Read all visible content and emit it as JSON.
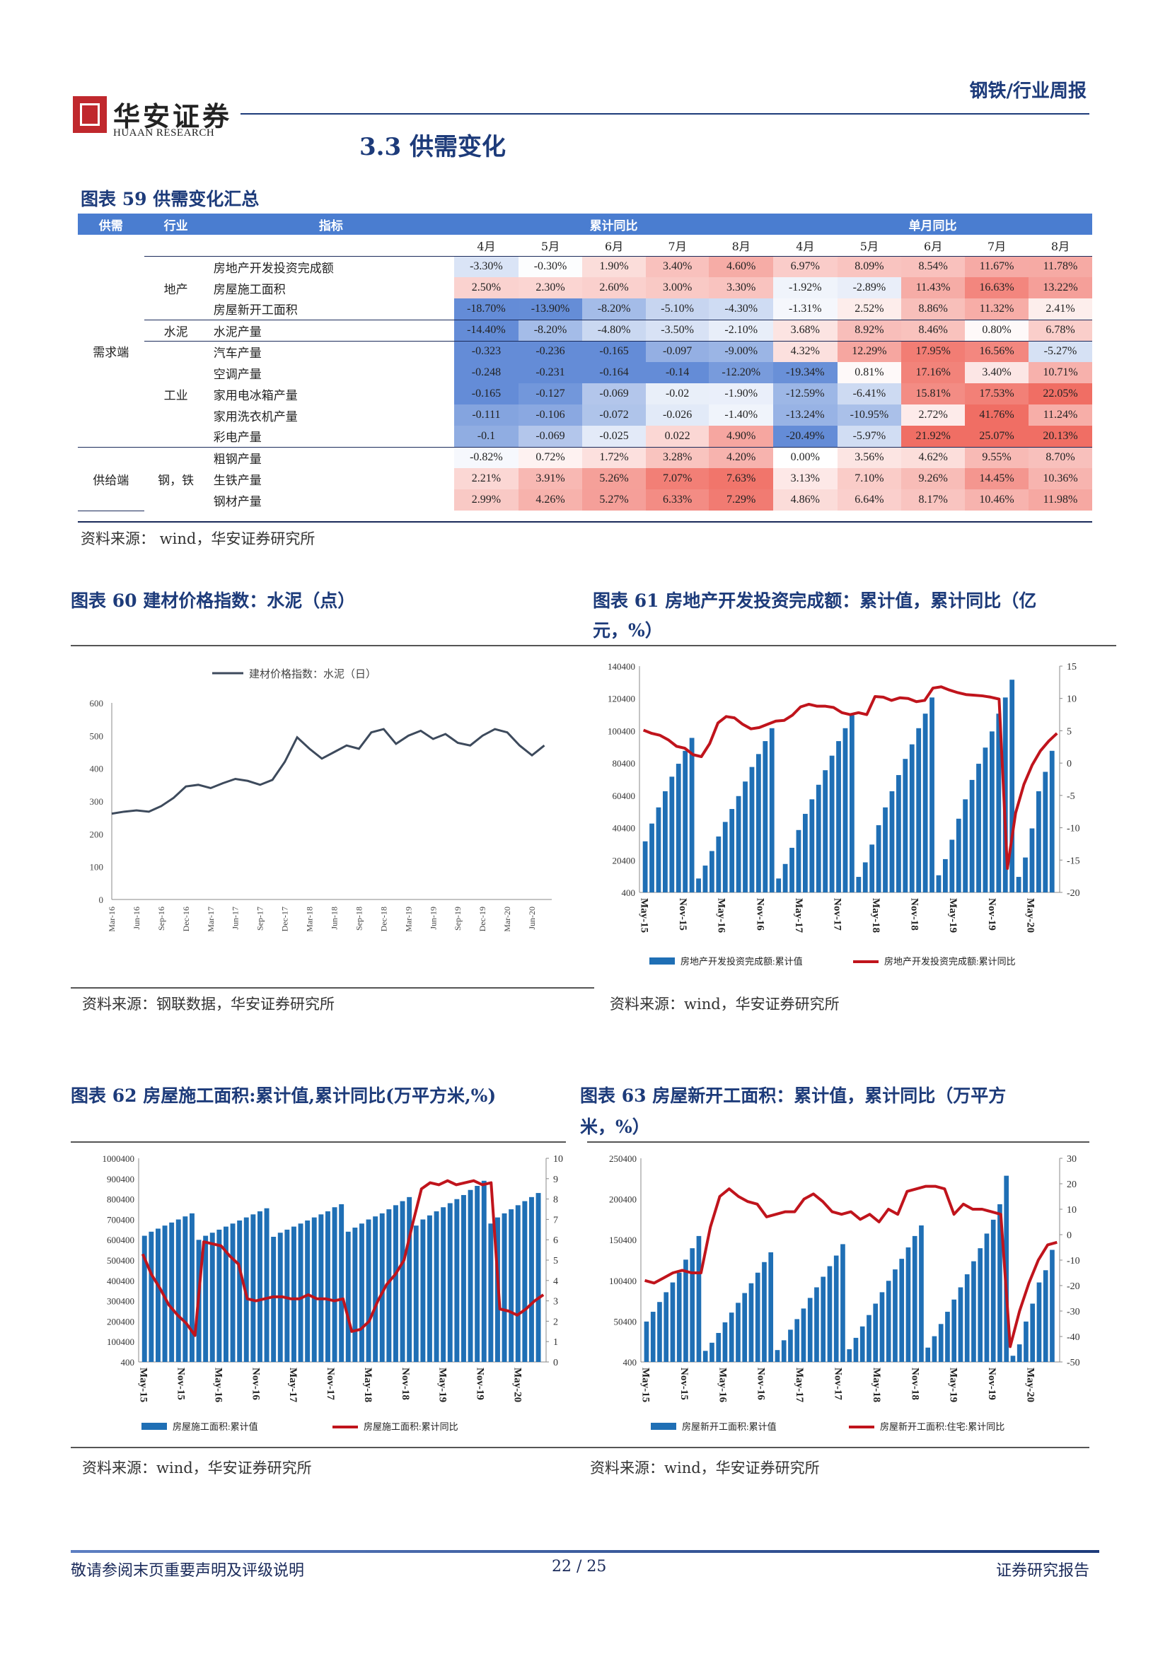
{
  "header": {
    "logo_cn": "华安证券",
    "logo_en": "HUAAN RESEARCH",
    "report_type": "钢铁/行业周报"
  },
  "section_title": "3.3 供需变化",
  "table59": {
    "title": "图表 59 供需变化汇总",
    "head": {
      "supply_demand": "供需",
      "industry": "行业",
      "indicator": "指标",
      "cumulative": "累计同比",
      "single": "单月同比"
    },
    "months": [
      "4月",
      "5月",
      "6月",
      "7月",
      "8月",
      "4月",
      "5月",
      "6月",
      "7月",
      "8月"
    ],
    "groups": [
      {
        "side": "需求端",
        "subgroups": [
          {
            "industry": "地产",
            "rows": [
              {
                "name": "房地产开发投资完成额",
                "values": [
                  "-3.30%",
                  "-0.30%",
                  "1.90%",
                  "3.40%",
                  "4.60%",
                  "6.97%",
                  "8.09%",
                  "8.54%",
                  "11.67%",
                  "11.78%"
                ]
              },
              {
                "name": "房屋施工面积",
                "values": [
                  "2.50%",
                  "2.30%",
                  "2.60%",
                  "3.00%",
                  "3.30%",
                  "-1.92%",
                  "-2.89%",
                  "11.43%",
                  "16.63%",
                  "13.22%"
                ]
              },
              {
                "name": "房屋新开工面积",
                "values": [
                  "-18.70%",
                  "-13.90%",
                  "-8.20%",
                  "-5.10%",
                  "-4.30%",
                  "-1.31%",
                  "2.52%",
                  "8.86%",
                  "11.32%",
                  "2.41%"
                ]
              }
            ]
          },
          {
            "industry": "水泥",
            "rows": [
              {
                "name": "水泥产量",
                "values": [
                  "-14.40%",
                  "-8.20%",
                  "-4.80%",
                  "-3.50%",
                  "-2.10%",
                  "3.68%",
                  "8.92%",
                  "8.46%",
                  "0.80%",
                  "6.78%"
                ]
              }
            ]
          },
          {
            "industry": "工业",
            "rows": [
              {
                "name": "汽车产量",
                "values": [
                  "-0.323",
                  "-0.236",
                  "-0.165",
                  "-0.097",
                  "-9.00%",
                  "4.32%",
                  "12.29%",
                  "17.95%",
                  "16.56%",
                  "-5.27%"
                ]
              },
              {
                "name": "空调产量",
                "values": [
                  "-0.248",
                  "-0.231",
                  "-0.164",
                  "-0.14",
                  "-12.20%",
                  "-19.34%",
                  "0.81%",
                  "17.16%",
                  "3.40%",
                  "10.71%"
                ]
              },
              {
                "name": "家用电冰箱产量",
                "values": [
                  "-0.165",
                  "-0.127",
                  "-0.069",
                  "-0.02",
                  "-1.90%",
                  "-12.59%",
                  "-6.41%",
                  "15.81%",
                  "17.53%",
                  "22.05%"
                ]
              },
              {
                "name": "家用洗衣机产量",
                "values": [
                  "-0.111",
                  "-0.106",
                  "-0.072",
                  "-0.026",
                  "-1.40%",
                  "-13.24%",
                  "-10.95%",
                  "2.72%",
                  "41.76%",
                  "11.24%"
                ]
              },
              {
                "name": "彩电产量",
                "values": [
                  "-0.1",
                  "-0.069",
                  "-0.025",
                  "0.022",
                  "4.90%",
                  "-20.49%",
                  "-5.97%",
                  "21.92%",
                  "25.07%",
                  "20.13%"
                ]
              }
            ]
          }
        ]
      },
      {
        "side": "供给端",
        "subgroups": [
          {
            "industry": "钢，铁",
            "rows": [
              {
                "name": "粗钢产量",
                "values": [
                  "-0.82%",
                  "0.72%",
                  "1.72%",
                  "3.28%",
                  "4.20%",
                  "0.00%",
                  "3.56%",
                  "4.62%",
                  "9.55%",
                  "8.70%"
                ]
              },
              {
                "name": "生铁产量",
                "values": [
                  "2.21%",
                  "3.91%",
                  "5.26%",
                  "7.07%",
                  "7.63%",
                  "3.13%",
                  "7.10%",
                  "9.26%",
                  "14.45%",
                  "10.36%"
                ]
              },
              {
                "name": "钢材产量",
                "values": [
                  "2.99%",
                  "4.26%",
                  "5.27%",
                  "6.33%",
                  "7.29%",
                  "4.86%",
                  "6.64%",
                  "8.17%",
                  "10.46%",
                  "11.98%"
                ]
              }
            ]
          }
        ]
      }
    ],
    "source": "资料来源： wind，华安证券研究所"
  },
  "fig60": {
    "title": "图表 60  建材价格指数：水泥（点）",
    "source": "资料来源：钢联数据，华安证券研究所",
    "legend": "建材价格指数：水泥（日）",
    "color": "#3d4a5c"
  },
  "fig61": {
    "title_line1": "图表 61  房地产开发投资完成额：累计值，累计同比（亿",
    "title_line2": "元，%）",
    "source": "资料来源：wind，华安证券研究所",
    "legend_bar": "房地产开发投资完成额:累计值",
    "legend_line": "房地产开发投资完成额:累计同比"
  },
  "fig62": {
    "title": "图表 62  房屋施工面积:累计值,累计同比(万平方米,%)",
    "source": "资料来源：wind，华安证券研究所",
    "legend_bar": "房屋施工面积:累计值",
    "legend_line": "房屋施工面积:累计同比"
  },
  "fig63": {
    "title_line1": "图表 63  房屋新开工面积：累计值，累计同比（万平方",
    "title_line2": "米，%）",
    "source": "资料来源：wind，华安证券研究所",
    "legend_bar": "房屋新开工面积:累计值",
    "legend_line": "房屋新开工面积:住宅:累计同比"
  },
  "footer": {
    "left": "敬请参阅末页重要声明及评级说明",
    "page": "22 / 25",
    "right": "证券研究报告"
  },
  "chart_data": [
    {
      "id": "fig60",
      "type": "line",
      "title": "图表 60  建材价格指数：水泥（点）",
      "x_ticks": [
        "Mar-16",
        "Jun-16",
        "Sep-16",
        "Dec-16",
        "Mar-17",
        "Jun-17",
        "Sep-17",
        "Dec-17",
        "Mar-18",
        "Jun-18",
        "Sep-18",
        "Dec-18",
        "Mar-19",
        "Jun-19",
        "Sep-19",
        "Dec-19",
        "Mar-20",
        "Jun-20"
      ],
      "ylim": [
        0,
        600
      ],
      "y_ticks": [
        0,
        100,
        200,
        300,
        400,
        500,
        600
      ],
      "series": [
        {
          "name": "建材价格指数：水泥（日）",
          "x": [
            0,
            0.5,
            1,
            1.5,
            2,
            2.5,
            3,
            3.5,
            4,
            4.5,
            5,
            5.5,
            6,
            6.5,
            7,
            7.5,
            8,
            8.5,
            9,
            9.5,
            10,
            10.5,
            11,
            11.5,
            12,
            12.5,
            13,
            13.5,
            14,
            14.5,
            15,
            15.5,
            16,
            16.5,
            17,
            17.5
          ],
          "values": [
            262,
            268,
            272,
            268,
            285,
            310,
            345,
            350,
            340,
            355,
            368,
            362,
            350,
            365,
            420,
            495,
            460,
            430,
            450,
            470,
            460,
            510,
            520,
            475,
            500,
            515,
            490,
            505,
            478,
            470,
            500,
            520,
            510,
            470,
            440,
            470
          ]
        }
      ]
    },
    {
      "id": "fig61",
      "type": "bar",
      "title": "图表 61  房地产开发投资完成额：累计值，累计同比（亿元，%）",
      "x_ticks": [
        "May-15",
        "Nov-15",
        "May-16",
        "Nov-16",
        "May-17",
        "Nov-17",
        "May-18",
        "Nov-18",
        "May-19",
        "Nov-19",
        "May-20"
      ],
      "ylim_left": [
        400,
        140400
      ],
      "y_ticks_left": [
        400,
        20400,
        40400,
        60400,
        80400,
        100400,
        120400,
        140400
      ],
      "ylim_right": [
        -20,
        15
      ],
      "y_ticks_right": [
        -20,
        -15,
        -10,
        -5,
        0,
        5,
        10,
        15
      ],
      "series": [
        {
          "name": "房地产开发投资完成额:累计值",
          "values": [
            32000,
            43000,
            53000,
            63000,
            72000,
            80000,
            88000,
            96000,
            9000,
            17000,
            26000,
            35000,
            44000,
            52000,
            60000,
            69000,
            78000,
            86000,
            94000,
            102000,
            9000,
            18000,
            28000,
            39000,
            49000,
            58000,
            67000,
            76000,
            85000,
            94000,
            102000,
            110000,
            10000,
            19000,
            30000,
            42000,
            53000,
            63000,
            73000,
            83000,
            92000,
            102000,
            111000,
            121000,
            11000,
            21000,
            33000,
            46000,
            58000,
            70000,
            80000,
            90000,
            100000,
            111000,
            121000,
            132000,
            10000,
            22000,
            40000,
            63000,
            75000,
            88000
          ]
        },
        {
          "name": "房地产开发投资完成额:累计同比",
          "values": [
            5.1,
            4.6,
            4.3,
            3.6,
            2.6,
            2.3,
            1.3,
            1.0,
            3.0,
            6.2,
            7.2,
            7.0,
            6.0,
            5.3,
            5.5,
            6.0,
            6.5,
            6.6,
            7.4,
            8.7,
            9.1,
            8.8,
            8.8,
            8.6,
            7.8,
            7.5,
            7.8,
            7.5,
            10.3,
            10.2,
            9.7,
            10.1,
            10.0,
            9.5,
            9.7,
            11.6,
            11.8,
            11.3,
            10.9,
            10.6,
            10.5,
            10.4,
            10.2,
            9.9,
            -16.3,
            -7.7,
            -3.3,
            -0.3,
            1.9,
            3.4,
            4.6
          ]
        }
      ]
    },
    {
      "id": "fig62",
      "type": "bar",
      "title": "图表 62  房屋施工面积:累计值,累计同比(万平方米,%)",
      "x_ticks": [
        "May-15",
        "Nov-15",
        "May-16",
        "Nov-16",
        "May-17",
        "Nov-17",
        "May-18",
        "Nov-18",
        "May-19",
        "Nov-19",
        "May-20"
      ],
      "ylim_left": [
        400,
        1000400
      ],
      "y_ticks_left": [
        400,
        100400,
        200400,
        300400,
        400400,
        500400,
        600400,
        700400,
        800400,
        900400,
        1000400
      ],
      "ylim_right": [
        0,
        10
      ],
      "y_ticks_right": [
        0,
        1,
        2,
        3,
        4,
        5,
        6,
        7,
        8,
        9,
        10
      ],
      "series": [
        {
          "name": "房屋施工面积:累计值",
          "values": [
            620000,
            640000,
            655000,
            670000,
            685000,
            700000,
            715000,
            730000,
            600000,
            620000,
            635000,
            650000,
            665000,
            680000,
            695000,
            710000,
            725000,
            740000,
            755000,
            615000,
            635000,
            650000,
            665000,
            680000,
            695000,
            710000,
            725000,
            740000,
            760000,
            775000,
            640000,
            660000,
            680000,
            700000,
            715000,
            730000,
            750000,
            770000,
            790000,
            810000,
            670000,
            700000,
            720000,
            740000,
            760000,
            780000,
            800000,
            820000,
            845000,
            865000,
            890000,
            680000,
            710000,
            730000,
            750000,
            770000,
            790000,
            810000,
            830000
          ]
        },
        {
          "name": "房屋施工面积:累计同比",
          "values": [
            5.3,
            4.3,
            3.6,
            2.8,
            2.3,
            1.9,
            1.3,
            5.9,
            5.8,
            5.7,
            5.2,
            4.8,
            3.1,
            3.0,
            3.1,
            3.2,
            3.2,
            3.1,
            3.1,
            3.3,
            3.1,
            3.1,
            3.0,
            3.1,
            1.5,
            1.6,
            2.0,
            3.0,
            3.8,
            4.3,
            5.0,
            6.8,
            8.5,
            8.8,
            8.7,
            8.9,
            8.7,
            8.8,
            8.9,
            8.7,
            8.8,
            2.6,
            2.5,
            2.3,
            2.6,
            3.0,
            3.3
          ]
        }
      ]
    },
    {
      "id": "fig63",
      "type": "bar",
      "title": "图表 63  房屋新开工面积：累计值，累计同比（万平方米，%）",
      "x_ticks": [
        "May-15",
        "Nov-15",
        "May-16",
        "Nov-16",
        "May-17",
        "Nov-17",
        "May-18",
        "Nov-18",
        "May-19",
        "Nov-19",
        "May-20"
      ],
      "ylim_left": [
        400,
        250400
      ],
      "y_ticks_left": [
        400,
        50400,
        100400,
        150400,
        200400,
        250400
      ],
      "ylim_right": [
        -50,
        30
      ],
      "y_ticks_right": [
        -50,
        -40,
        -30,
        -20,
        -10,
        0,
        10,
        20,
        30
      ],
      "series": [
        {
          "name": "房屋新开工面积:累计值",
          "values": [
            50000,
            62000,
            74000,
            86000,
            98000,
            110000,
            126000,
            140000,
            155000,
            14000,
            24000,
            36000,
            49000,
            61000,
            73000,
            85000,
            97000,
            110000,
            123000,
            135000,
            15000,
            27000,
            40000,
            53000,
            66000,
            79000,
            92000,
            105000,
            118000,
            131000,
            145000,
            16000,
            30000,
            44000,
            58000,
            72000,
            86000,
            100000,
            114000,
            127000,
            141000,
            155000,
            168000,
            18000,
            32000,
            47000,
            62000,
            77000,
            92000,
            108000,
            124000,
            140000,
            158000,
            175000,
            194000,
            229000,
            8000,
            22000,
            50000,
            72000,
            98000,
            113000,
            138000
          ]
        },
        {
          "name": "房屋新开工面积:住宅:累计同比",
          "values": [
            -18,
            -19,
            -17,
            -15,
            -14,
            -15,
            -15,
            3,
            15,
            18,
            15,
            13,
            12,
            7,
            8,
            9,
            9,
            14,
            16,
            13,
            9,
            8,
            9,
            6,
            8,
            5,
            10,
            8,
            17,
            18,
            19,
            19,
            18,
            8,
            12,
            10,
            10,
            9,
            8,
            -44,
            -30,
            -19,
            -10,
            -4,
            -3
          ]
        }
      ]
    }
  ]
}
